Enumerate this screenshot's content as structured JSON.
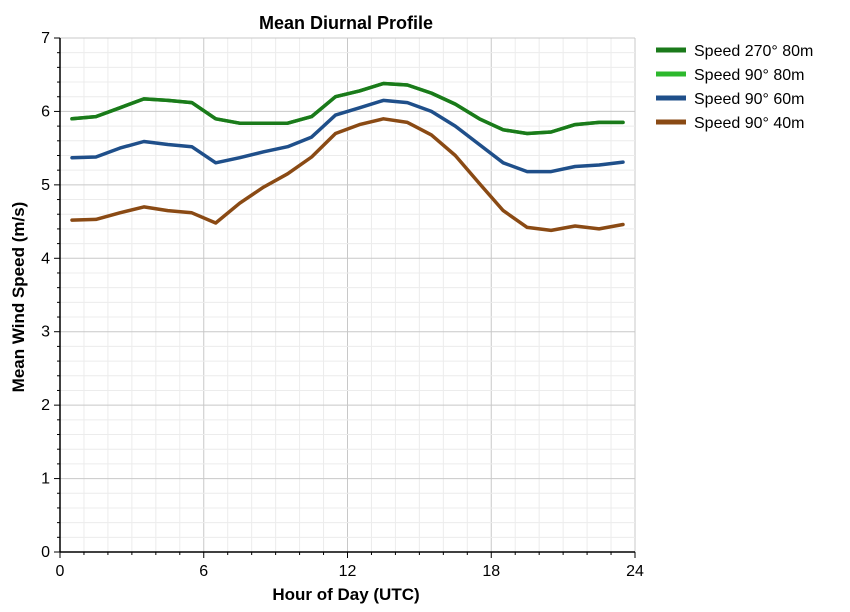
{
  "chart_data": {
    "type": "line",
    "title": "Mean Diurnal Profile",
    "xlabel": "Hour of Day (UTC)",
    "ylabel": "Mean Wind Speed (m/s)",
    "xlim": [
      0,
      24
    ],
    "ylim": [
      0,
      7
    ],
    "xticks": [
      0,
      6,
      12,
      18,
      24
    ],
    "yticks": [
      0,
      1,
      2,
      3,
      4,
      5,
      6,
      7
    ],
    "grid": true,
    "legend_position": "top-right, outside plot",
    "x": [
      0.5,
      1.5,
      2.5,
      3.5,
      4.5,
      5.5,
      6.5,
      7.5,
      8.5,
      9.5,
      10.5,
      11.5,
      12.5,
      13.5,
      14.5,
      15.5,
      16.5,
      17.5,
      18.5,
      19.5,
      20.5,
      21.5,
      22.5,
      23.5
    ],
    "series": [
      {
        "name": "Speed 270° 80m",
        "color": "#1a7a1a",
        "values": [
          5.9,
          5.93,
          6.05,
          6.17,
          6.15,
          6.12,
          5.9,
          5.84,
          5.84,
          5.84,
          5.93,
          6.2,
          6.28,
          6.38,
          6.36,
          6.25,
          6.1,
          5.9,
          5.75,
          5.7,
          5.72,
          5.82,
          5.85,
          5.85
        ]
      },
      {
        "name": "Speed 90° 80m",
        "color": "#2db82d",
        "values": [
          5.9,
          5.93,
          6.05,
          6.17,
          6.15,
          6.12,
          5.9,
          5.84,
          5.84,
          5.84,
          5.93,
          6.2,
          6.28,
          6.38,
          6.36,
          6.25,
          6.1,
          5.9,
          5.75,
          5.7,
          5.72,
          5.82,
          5.85,
          5.85
        ]
      },
      {
        "name": "Speed 90° 60m",
        "color": "#1f4f8a",
        "values": [
          5.37,
          5.38,
          5.5,
          5.59,
          5.55,
          5.52,
          5.3,
          5.37,
          5.45,
          5.52,
          5.65,
          5.95,
          6.05,
          6.15,
          6.12,
          6.0,
          5.8,
          5.55,
          5.3,
          5.18,
          5.18,
          5.25,
          5.27,
          5.31
        ]
      },
      {
        "name": "Speed 90° 40m",
        "color": "#8a4a14",
        "values": [
          4.52,
          4.53,
          4.62,
          4.7,
          4.65,
          4.62,
          4.48,
          4.75,
          4.97,
          5.15,
          5.38,
          5.7,
          5.82,
          5.9,
          5.85,
          5.68,
          5.4,
          5.02,
          4.65,
          4.42,
          4.38,
          4.44,
          4.4,
          4.46
        ]
      }
    ]
  }
}
